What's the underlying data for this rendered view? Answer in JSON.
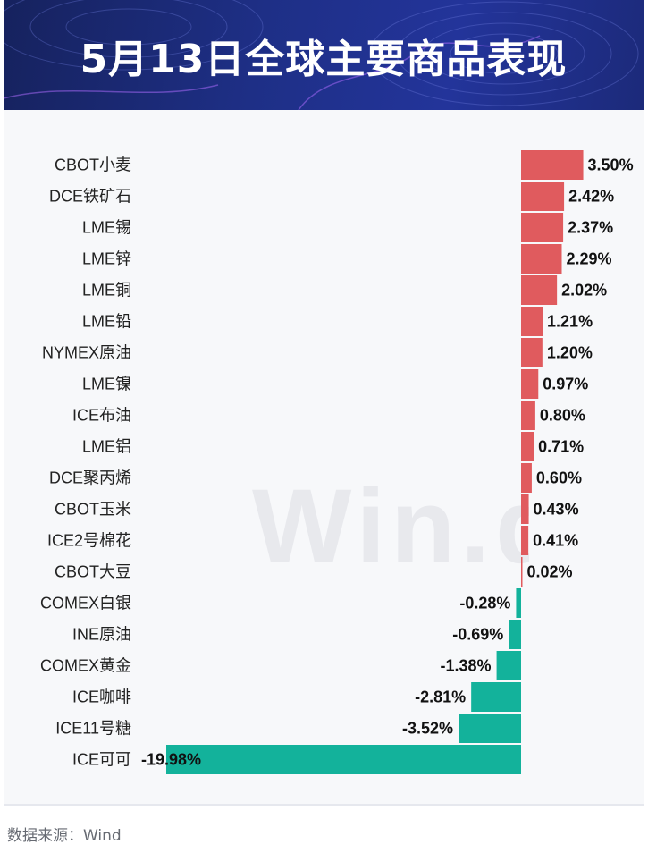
{
  "header": {
    "title": "5月13日全球主要商品表现"
  },
  "watermark": "Win.d",
  "source": "数据来源：Wind",
  "colors": {
    "positive": "#e05b5e",
    "negative": "#13b29b",
    "header_bg": "#1e2f86"
  },
  "chart_data": {
    "type": "bar",
    "orientation": "horizontal",
    "title": "5月13日全球主要商品表现",
    "unit": "%",
    "categories": [
      "CBOT小麦",
      "DCE铁矿石",
      "LME锡",
      "LME锌",
      "LME铜",
      "LME铅",
      "NYMEX原油",
      "LME镍",
      "ICE布油",
      "LME铝",
      "DCE聚丙烯",
      "CBOT玉米",
      "ICE2号棉花",
      "CBOT大豆",
      "COMEX白银",
      "INE原油",
      "COMEX黄金",
      "ICE咖啡",
      "ICE11号糖",
      "ICE可可"
    ],
    "values": [
      3.5,
      2.42,
      2.37,
      2.29,
      2.02,
      1.21,
      1.2,
      0.97,
      0.8,
      0.71,
      0.6,
      0.43,
      0.41,
      0.02,
      -0.28,
      -0.69,
      -1.38,
      -2.81,
      -3.52,
      -19.98
    ],
    "labels": [
      "3.50%",
      "2.42%",
      "2.37%",
      "2.29%",
      "2.02%",
      "1.21%",
      "1.20%",
      "0.97%",
      "0.80%",
      "0.71%",
      "0.60%",
      "0.43%",
      "0.41%",
      "0.02%",
      "-0.28%",
      "-0.69%",
      "-1.38%",
      "-2.81%",
      "-3.52%",
      "-19.98%"
    ]
  }
}
